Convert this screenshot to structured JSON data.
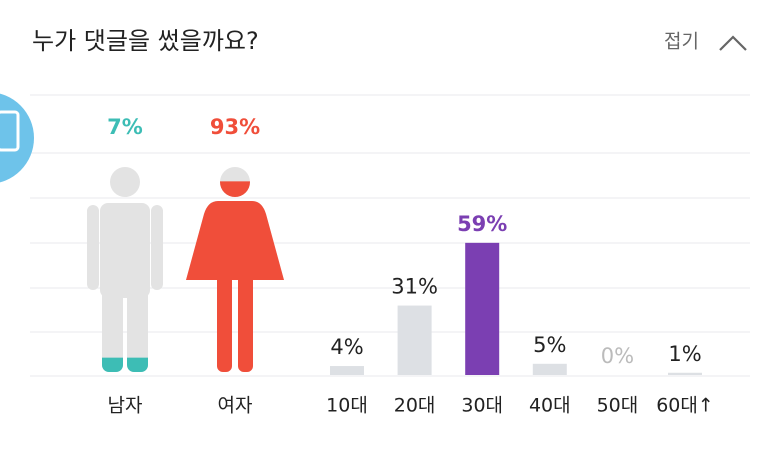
{
  "header": {
    "title": "누가 댓글을 썼을까요?",
    "toggle": "접기"
  },
  "chart_data": [
    {
      "type": "pictogram",
      "categories": [
        "남자",
        "여자"
      ],
      "values": [
        7,
        93
      ],
      "value_labels": [
        "7%",
        "93%"
      ],
      "colors": [
        "#3dbdb5",
        "#f04e3a"
      ]
    },
    {
      "type": "bar",
      "categories": [
        "10대",
        "20대",
        "30대",
        "40대",
        "50대",
        "60대↑"
      ],
      "values": [
        4,
        31,
        59,
        5,
        0,
        1
      ],
      "value_labels": [
        "4%",
        "31%",
        "59%",
        "5%",
        "0%",
        "1%"
      ],
      "colors": [
        "#dde0e4",
        "#dde0e4",
        "#7b3fb2",
        "#dde0e4",
        "#dde0e4",
        "#dde0e4"
      ]
    }
  ]
}
